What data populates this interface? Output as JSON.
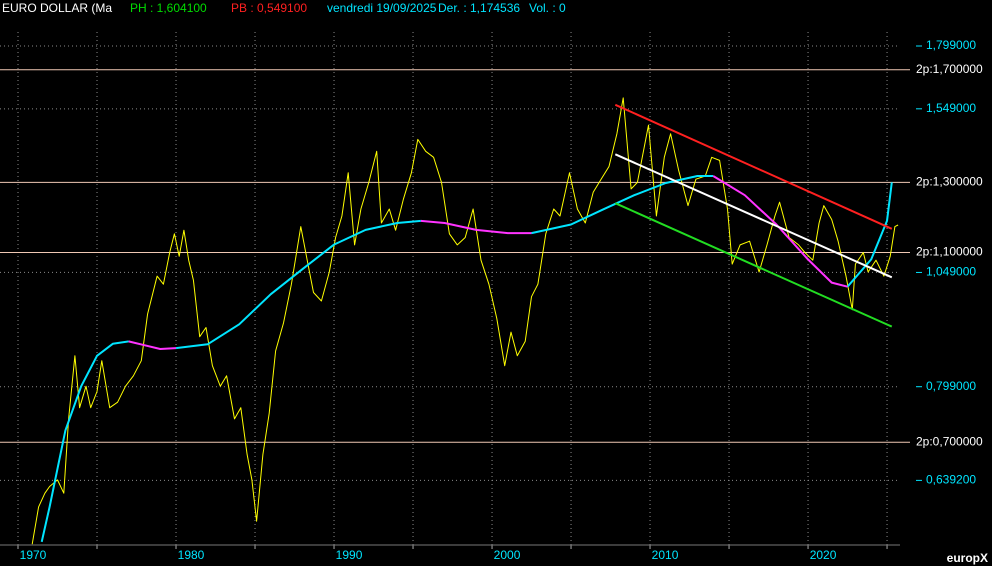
{
  "chart_data": {
    "type": "line",
    "title": "EURO DOLLAR (Ma",
    "header": [
      {
        "text": "PH : 1,604100",
        "color": "#00dd00"
      },
      {
        "text": "PB : 0,549100",
        "color": "#ff2020"
      },
      {
        "text": "vendredi 19/09/2025",
        "color": "#00e5ff"
      },
      {
        "text": "Der. : 1,174536",
        "color": "#00e5ff"
      },
      {
        "text": "Vol. : 0",
        "color": "#00e5ff"
      }
    ],
    "watermark": "europX",
    "ylog": true,
    "xlim": [
      1968.86,
      2025.82
    ],
    "ylim": [
      0.548,
      1.914
    ],
    "xticks": [
      1970,
      1980,
      1990,
      2000,
      2010,
      2020
    ],
    "xgrid": [
      1970,
      1975,
      1980,
      1985,
      1990,
      1995,
      2000,
      2005,
      2010,
      2015,
      2020,
      2025
    ],
    "yticks": [
      {
        "value": 1.799,
        "label": "1,799000"
      },
      {
        "value": 1.549,
        "label": "1,549000"
      },
      {
        "value": 1.049,
        "label": "1,049000"
      },
      {
        "value": 0.799,
        "label": "0,799000"
      },
      {
        "value": 0.6392,
        "label": "0,639200"
      }
    ],
    "hlines": [
      {
        "value": 1.7,
        "label": "2p:1,700000"
      },
      {
        "value": 1.3,
        "label": "2p:1,300000"
      },
      {
        "value": 1.1,
        "label": "2p:1,100000"
      },
      {
        "value": 0.7,
        "label": "2p:0,700000"
      }
    ],
    "hline_color": "#f0c8b4",
    "tick_color": "#00e5ff",
    "grid": true,
    "series": [
      {
        "color": "#ffff00",
        "width": 1,
        "x": [
          1970.9,
          1971.3,
          1971.7,
          1972,
          1972.5,
          1972.9,
          1973.2,
          1973.6,
          1973.9,
          1974.3,
          1974.6,
          1975,
          1975.3,
          1975.8,
          1976.3,
          1976.8,
          1977.3,
          1977.8,
          1978.2,
          1978.8,
          1979.2,
          1979.6,
          1979.9,
          1980.2,
          1980.5,
          1980.8,
          1981.1,
          1981.5,
          1981.9,
          1982.3,
          1982.8,
          1983.2,
          1983.7,
          1984.1,
          1984.5,
          1984.8,
          1985.1,
          1985.5,
          1985.9,
          1986.3,
          1986.8,
          1987.3,
          1987.9,
          1988.3,
          1988.7,
          1989.2,
          1989.7,
          1990.1,
          1990.5,
          1990.9,
          1991.3,
          1991.7,
          1992.2,
          1992.7,
          1993,
          1993.5,
          1993.9,
          1994.4,
          1994.9,
          1995.3,
          1995.8,
          1996.3,
          1996.8,
          1997.3,
          1997.8,
          1998.3,
          1998.8,
          1999.3,
          1999.8,
          2000.3,
          2000.8,
          2001.2,
          2001.6,
          2002.1,
          2002.5,
          2002.9,
          2003.4,
          2003.9,
          2004.3,
          2004.9,
          2005.4,
          2005.9,
          2006.4,
          2006.9,
          2007.4,
          2007.9,
          2008.3,
          2008.8,
          2009.2,
          2009.9,
          2010.4,
          2010.9,
          2011.3,
          2011.8,
          2012.4,
          2012.9,
          2013.5,
          2013.9,
          2014.4,
          2014.9,
          2015.2,
          2015.7,
          2016.3,
          2016.9,
          2017.4,
          2017.9,
          2018.2,
          2018.8,
          2019.4,
          2019.8,
          2020.3,
          2020.7,
          2021,
          2021.5,
          2021.9,
          2022.4,
          2022.8,
          2023,
          2023.5,
          2023.8,
          2024.3,
          2024.8,
          2025.2,
          2025.5,
          2025.7
        ],
        "values": [
          0.549,
          0.6,
          0.62,
          0.63,
          0.64,
          0.62,
          0.74,
          0.86,
          0.76,
          0.8,
          0.76,
          0.79,
          0.85,
          0.76,
          0.77,
          0.8,
          0.82,
          0.85,
          0.95,
          1.04,
          1.02,
          1.1,
          1.15,
          1.09,
          1.16,
          1.08,
          1.03,
          0.9,
          0.92,
          0.84,
          0.8,
          0.82,
          0.74,
          0.76,
          0.68,
          0.64,
          0.58,
          0.68,
          0.75,
          0.87,
          0.93,
          1.02,
          1.17,
          1.08,
          1.0,
          0.98,
          1.05,
          1.14,
          1.2,
          1.33,
          1.12,
          1.22,
          1.3,
          1.4,
          1.18,
          1.22,
          1.16,
          1.25,
          1.33,
          1.44,
          1.4,
          1.38,
          1.3,
          1.15,
          1.12,
          1.14,
          1.22,
          1.08,
          1.02,
          0.94,
          0.84,
          0.91,
          0.86,
          0.89,
          0.99,
          1.02,
          1.15,
          1.22,
          1.2,
          1.33,
          1.22,
          1.18,
          1.27,
          1.31,
          1.35,
          1.46,
          1.59,
          1.28,
          1.3,
          1.49,
          1.2,
          1.38,
          1.46,
          1.34,
          1.23,
          1.31,
          1.32,
          1.38,
          1.37,
          1.22,
          1.07,
          1.12,
          1.13,
          1.05,
          1.12,
          1.2,
          1.24,
          1.14,
          1.12,
          1.1,
          1.08,
          1.18,
          1.23,
          1.19,
          1.13,
          1.04,
          0.96,
          1.07,
          1.1,
          1.05,
          1.08,
          1.04,
          1.09,
          1.17,
          1.1745
        ]
      },
      {
        "color": "#00e5ff",
        "width": 2,
        "x": [
          1971.5,
          1972,
          1973,
          1974,
          1975,
          1976,
          1977,
          1978,
          1979,
          1980,
          1982,
          1984,
          1986,
          1988,
          1990,
          1992,
          1994,
          1995.5,
          1997,
          1999,
          2001,
          2002.5,
          2005,
          2007,
          2009,
          2011,
          2013,
          2014,
          2016,
          2018,
          2020,
          2021.5,
          2022.5,
          2024,
          2025,
          2025.3
        ],
        "values": [
          0.552,
          0.6,
          0.72,
          0.8,
          0.86,
          0.885,
          0.89,
          null,
          null,
          0.876,
          0.884,
          0.927,
          0.996,
          1.057,
          1.121,
          1.161,
          1.18,
          1.186,
          null,
          null,
          null,
          1.152,
          1.176,
          1.218,
          1.261,
          1.298,
          1.32,
          1.32,
          null,
          null,
          null,
          null,
          1.014,
          1.082,
          1.186,
          1.3
        ]
      },
      {
        "color": "#ff33ff",
        "width": 2,
        "x": [
          1971.5,
          1972,
          1973,
          1974,
          1975,
          1976,
          1977,
          1978,
          1979,
          1980,
          1982,
          1984,
          1986,
          1988,
          1990,
          1992,
          1994,
          1995.5,
          1997,
          1999,
          2001,
          2002.5,
          2005,
          2007,
          2009,
          2011,
          2013,
          2014,
          2016,
          2018,
          2020,
          2021.5,
          2022.5,
          2024,
          2025,
          2025.3
        ],
        "values": [
          null,
          null,
          null,
          null,
          null,
          null,
          0.89,
          0.882,
          0.874,
          0.876,
          null,
          null,
          null,
          null,
          null,
          null,
          null,
          1.186,
          1.18,
          1.161,
          1.152,
          1.152,
          null,
          null,
          null,
          null,
          null,
          1.32,
          1.261,
          1.176,
          1.082,
          1.024,
          1.014,
          null,
          null,
          null
        ]
      },
      {
        "color": "#ff2020",
        "width": 2,
        "x": [
          2007.8,
          2025.3
        ],
        "values": [
          1.564,
          1.164
        ]
      },
      {
        "color": "#ffffff",
        "width": 2,
        "x": [
          2007.8,
          2025.3
        ],
        "values": [
          1.39,
          1.037
        ]
      },
      {
        "color": "#22dd22",
        "width": 2,
        "x": [
          2007.8,
          2025.3
        ],
        "values": [
          1.237,
          0.922
        ]
      }
    ]
  }
}
